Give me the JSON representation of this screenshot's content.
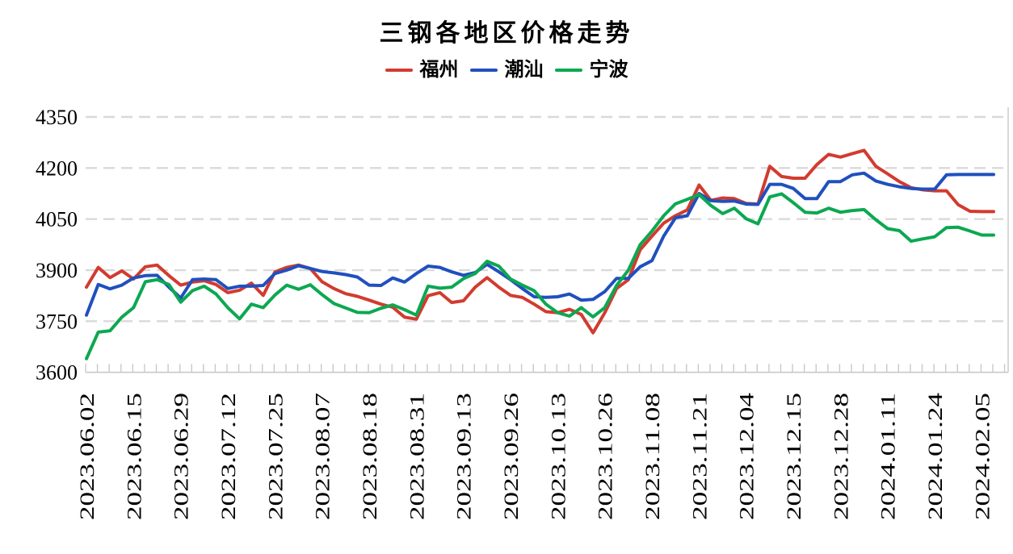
{
  "title": "三钢各地区价格走势",
  "legend": [
    {
      "label": "福州",
      "color": "#D23B2F"
    },
    {
      "label": "潮汕",
      "color": "#2050BE"
    },
    {
      "label": "宁波",
      "color": "#0CA851"
    }
  ],
  "chart_data": {
    "type": "line",
    "title": "三钢各地区价格走势",
    "xlabel": "",
    "ylabel": "",
    "ylim": [
      3600,
      4350
    ],
    "y_ticks": [
      3600,
      3750,
      3900,
      4050,
      4200,
      4350
    ],
    "grid": "horizontal-dashed",
    "legend_position": "top",
    "x_labels_every_n_points": 4,
    "x_tick_labels": [
      "2023.06.02",
      "2023.06.15",
      "2023.06.29",
      "2023.07.12",
      "2023.07.25",
      "2023.08.07",
      "2023.08.18",
      "2023.08.31",
      "2023.09.13",
      "2023.09.26",
      "2023.10.13",
      "2023.10.26",
      "2023.11.08",
      "2023.11.21",
      "2023.12.04",
      "2023.12.15",
      "2023.12.28",
      "2024.01.11",
      "2024.01.24",
      "2024.02.05"
    ],
    "series": [
      {
        "name": "福州",
        "color": "#D23B2F",
        "values": [
          3850,
          3908,
          3878,
          3898,
          3874,
          3910,
          3915,
          3884,
          3856,
          3865,
          3869,
          3858,
          3834,
          3841,
          3862,
          3826,
          3895,
          3908,
          3915,
          3905,
          3866,
          3846,
          3831,
          3823,
          3812,
          3800,
          3791,
          3762,
          3756,
          3825,
          3834,
          3805,
          3810,
          3850,
          3878,
          3850,
          3826,
          3820,
          3800,
          3778,
          3775,
          3785,
          3770,
          3716,
          3775,
          3846,
          3872,
          3960,
          4000,
          4038,
          4060,
          4077,
          4150,
          4105,
          4112,
          4110,
          4096,
          4094,
          4205,
          4175,
          4170,
          4170,
          4210,
          4240,
          4232,
          4242,
          4252,
          4205,
          4183,
          4160,
          4142,
          4136,
          4133,
          4133,
          4092,
          4073,
          4072,
          4072
        ]
      },
      {
        "name": "潮汕",
        "color": "#2050BE",
        "values": [
          3768,
          3858,
          3845,
          3856,
          3877,
          3884,
          3885,
          3850,
          3818,
          3872,
          3874,
          3872,
          3846,
          3853,
          3853,
          3855,
          3890,
          3900,
          3913,
          3905,
          3896,
          3892,
          3887,
          3880,
          3856,
          3855,
          3877,
          3865,
          3890,
          3912,
          3908,
          3895,
          3885,
          3893,
          3917,
          3895,
          3872,
          3846,
          3822,
          3820,
          3822,
          3830,
          3812,
          3814,
          3837,
          3876,
          3876,
          3910,
          3928,
          4000,
          4054,
          4060,
          4125,
          4104,
          4102,
          4103,
          4094,
          4093,
          4152,
          4152,
          4140,
          4110,
          4110,
          4160,
          4160,
          4180,
          4185,
          4162,
          4152,
          4145,
          4140,
          4138,
          4138,
          4180,
          4181,
          4181,
          4181,
          4181
        ]
      },
      {
        "name": "宁波",
        "color": "#0CA851",
        "values": [
          3640,
          3718,
          3722,
          3762,
          3790,
          3866,
          3872,
          3858,
          3806,
          3840,
          3853,
          3830,
          3790,
          3757,
          3800,
          3790,
          3827,
          3856,
          3844,
          3857,
          3828,
          3802,
          3789,
          3776,
          3775,
          3788,
          3798,
          3784,
          3768,
          3853,
          3847,
          3850,
          3875,
          3890,
          3926,
          3912,
          3874,
          3856,
          3840,
          3800,
          3775,
          3765,
          3790,
          3763,
          3790,
          3855,
          3900,
          3975,
          4015,
          4060,
          4095,
          4108,
          4122,
          4090,
          4066,
          4082,
          4051,
          4036,
          4115,
          4124,
          4098,
          4070,
          4068,
          4082,
          4070,
          4075,
          4078,
          4048,
          4022,
          4016,
          3985,
          3992,
          3998,
          4025,
          4026,
          4015,
          4003,
          4003
        ]
      }
    ]
  }
}
